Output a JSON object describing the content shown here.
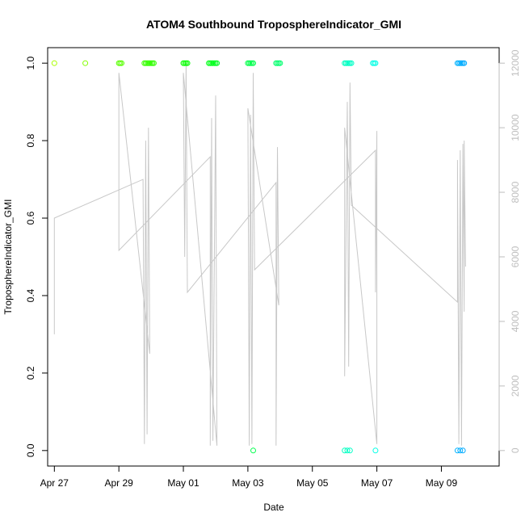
{
  "chart_data": {
    "type": "scatter",
    "title": "ATOM4 Southbound TroposphereIndicator_GMI",
    "xlabel": "Date",
    "ylabel": "TroposphereIndicator_GMI",
    "x_ticks": [
      "Apr 27",
      "Apr 29",
      "May 01",
      "May 03",
      "May 05",
      "May 07",
      "May 09"
    ],
    "y_ticks": [
      "0.0",
      "0.2",
      "0.4",
      "0.6",
      "0.8",
      "1.0"
    ],
    "y2_ticks": [
      "0",
      "2000",
      "4000",
      "6000",
      "8000",
      "10000",
      "12000"
    ],
    "xlim": [
      "2018-04-26T19:00",
      "2018-05-10T19:00"
    ],
    "ylim": [
      -0.04,
      1.04
    ],
    "y2lim": [
      -480,
      12480
    ],
    "grid": false,
    "series": [
      {
        "role": "indicator",
        "points": [
          {
            "x": "2018-04-27T00:00",
            "y": 1
          },
          {
            "x": "2018-04-27T23:00",
            "y": 1
          },
          {
            "x": "2018-04-29T00:00",
            "y": 1
          },
          {
            "x": "2018-04-29T01:00",
            "y": 1
          },
          {
            "x": "2018-04-29T02:00",
            "y": 1
          },
          {
            "x": "2018-04-29T19:00",
            "y": 1
          },
          {
            "x": "2018-04-29T20:00",
            "y": 1
          },
          {
            "x": "2018-04-29T21:00",
            "y": 1
          },
          {
            "x": "2018-04-29T22:00",
            "y": 1
          },
          {
            "x": "2018-04-29T23:00",
            "y": 1
          },
          {
            "x": "2018-04-30T00:00",
            "y": 1
          },
          {
            "x": "2018-04-30T01:00",
            "y": 1
          },
          {
            "x": "2018-04-30T02:00",
            "y": 1
          },
          {
            "x": "2018-05-01T00:00",
            "y": 1
          },
          {
            "x": "2018-05-01T01:00",
            "y": 1
          },
          {
            "x": "2018-05-01T02:00",
            "y": 1
          },
          {
            "x": "2018-05-01T03:00",
            "y": 1
          },
          {
            "x": "2018-05-01T19:00",
            "y": 1
          },
          {
            "x": "2018-05-01T20:00",
            "y": 1
          },
          {
            "x": "2018-05-01T21:00",
            "y": 1
          },
          {
            "x": "2018-05-01T22:00",
            "y": 1
          },
          {
            "x": "2018-05-01T23:00",
            "y": 1
          },
          {
            "x": "2018-05-02T00:00",
            "y": 1
          },
          {
            "x": "2018-05-02T01:00",
            "y": 1
          },
          {
            "x": "2018-05-03T00:00",
            "y": 1
          },
          {
            "x": "2018-05-03T01:00",
            "y": 1
          },
          {
            "x": "2018-05-03T02:00",
            "y": 1
          },
          {
            "x": "2018-05-03T03:00",
            "y": 1
          },
          {
            "x": "2018-05-03T04:00",
            "y": 1
          },
          {
            "x": "2018-05-03T04:00",
            "y": 0
          },
          {
            "x": "2018-05-03T21:00",
            "y": 1
          },
          {
            "x": "2018-05-03T22:00",
            "y": 1
          },
          {
            "x": "2018-05-03T23:00",
            "y": 1
          },
          {
            "x": "2018-05-04T00:00",
            "y": 1
          },
          {
            "x": "2018-05-06T00:00",
            "y": 1
          },
          {
            "x": "2018-05-06T01:00",
            "y": 1
          },
          {
            "x": "2018-05-06T02:00",
            "y": 1
          },
          {
            "x": "2018-05-06T03:00",
            "y": 1
          },
          {
            "x": "2018-05-06T04:00",
            "y": 1
          },
          {
            "x": "2018-05-06T05:00",
            "y": 1
          },
          {
            "x": "2018-05-06T00:00",
            "y": 0
          },
          {
            "x": "2018-05-06T02:00",
            "y": 0
          },
          {
            "x": "2018-05-06T04:00",
            "y": 0
          },
          {
            "x": "2018-05-06T21:00",
            "y": 1
          },
          {
            "x": "2018-05-06T22:00",
            "y": 1
          },
          {
            "x": "2018-05-06T23:00",
            "y": 1
          },
          {
            "x": "2018-05-06T23:00",
            "y": 0
          },
          {
            "x": "2018-05-09T12:00",
            "y": 1
          },
          {
            "x": "2018-05-09T13:00",
            "y": 1
          },
          {
            "x": "2018-05-09T14:00",
            "y": 1
          },
          {
            "x": "2018-05-09T15:00",
            "y": 1
          },
          {
            "x": "2018-05-09T16:00",
            "y": 1
          },
          {
            "x": "2018-05-09T17:00",
            "y": 1
          },
          {
            "x": "2018-05-09T12:00",
            "y": 0
          },
          {
            "x": "2018-05-09T14:00",
            "y": 0
          },
          {
            "x": "2018-05-09T16:00",
            "y": 0
          }
        ]
      },
      {
        "role": "secondary-axis trace",
        "color": "#c8c8c8",
        "points": [
          {
            "x": "2018-04-27T00:00",
            "y2": 3600
          },
          {
            "x": "2018-04-27T00:00",
            "y2": 7200
          },
          {
            "x": "2018-04-29T18:00",
            "y2": 8400
          },
          {
            "x": "2018-04-29T19:00",
            "y2": 200
          },
          {
            "x": "2018-04-29T20:00",
            "y2": 9600
          },
          {
            "x": "2018-04-29T21:00",
            "y2": 500
          },
          {
            "x": "2018-04-29T22:00",
            "y2": 10000
          },
          {
            "x": "2018-04-29T23:00",
            "y2": 3000
          },
          {
            "x": "2018-04-29T00:00",
            "y2": 11700
          },
          {
            "x": "2018-04-29T00:00",
            "y2": 6200
          },
          {
            "x": "2018-05-01T20:00",
            "y2": 9100
          },
          {
            "x": "2018-05-01T20:00",
            "y2": 150
          },
          {
            "x": "2018-05-01T21:00",
            "y2": 10300
          },
          {
            "x": "2018-05-01T22:00",
            "y2": 300
          },
          {
            "x": "2018-05-02T00:00",
            "y2": 11000
          },
          {
            "x": "2018-05-02T01:00",
            "y2": 150
          },
          {
            "x": "2018-05-01T00:00",
            "y2": 11700
          },
          {
            "x": "2018-05-01T01:00",
            "y2": 6000
          },
          {
            "x": "2018-05-01T02:00",
            "y2": 12000
          },
          {
            "x": "2018-05-01T03:00",
            "y2": 4900
          },
          {
            "x": "2018-05-03T21:00",
            "y2": 8300
          },
          {
            "x": "2018-05-03T21:00",
            "y2": 150
          },
          {
            "x": "2018-05-03T22:00",
            "y2": 9400
          },
          {
            "x": "2018-05-03T23:00",
            "y2": 4500
          },
          {
            "x": "2018-05-03T00:00",
            "y2": 10600
          },
          {
            "x": "2018-05-03T01:00",
            "y2": 150
          },
          {
            "x": "2018-05-03T02:00",
            "y2": 10400
          },
          {
            "x": "2018-05-03T03:00",
            "y2": 200
          },
          {
            "x": "2018-05-03T04:00",
            "y2": 11700
          },
          {
            "x": "2018-05-03T05:00",
            "y2": 5600
          },
          {
            "x": "2018-05-06T23:00",
            "y2": 9300
          },
          {
            "x": "2018-05-06T23:00",
            "y2": 4900
          },
          {
            "x": "2018-05-07T00:00",
            "y2": 9900
          },
          {
            "x": "2018-05-07T00:00",
            "y2": 200
          },
          {
            "x": "2018-05-06T00:00",
            "y2": 10000
          },
          {
            "x": "2018-05-06T00:00",
            "y2": 2300
          },
          {
            "x": "2018-05-06T02:00",
            "y2": 10800
          },
          {
            "x": "2018-05-06T03:00",
            "y2": 2600
          },
          {
            "x": "2018-05-06T04:00",
            "y2": 11400
          },
          {
            "x": "2018-05-06T05:00",
            "y2": 7600
          },
          {
            "x": "2018-05-09T12:00",
            "y2": 4600
          },
          {
            "x": "2018-05-09T12:00",
            "y2": 9000
          },
          {
            "x": "2018-05-09T13:00",
            "y2": 200
          },
          {
            "x": "2018-05-09T14:00",
            "y2": 9300
          },
          {
            "x": "2018-05-09T15:00",
            "y2": 150
          },
          {
            "x": "2018-05-09T16:00",
            "y2": 9500
          },
          {
            "x": "2018-05-09T17:00",
            "y2": 4300
          },
          {
            "x": "2018-05-09T17:00",
            "y2": 9600
          },
          {
            "x": "2018-05-09T18:00",
            "y2": 5700
          }
        ]
      }
    ]
  }
}
